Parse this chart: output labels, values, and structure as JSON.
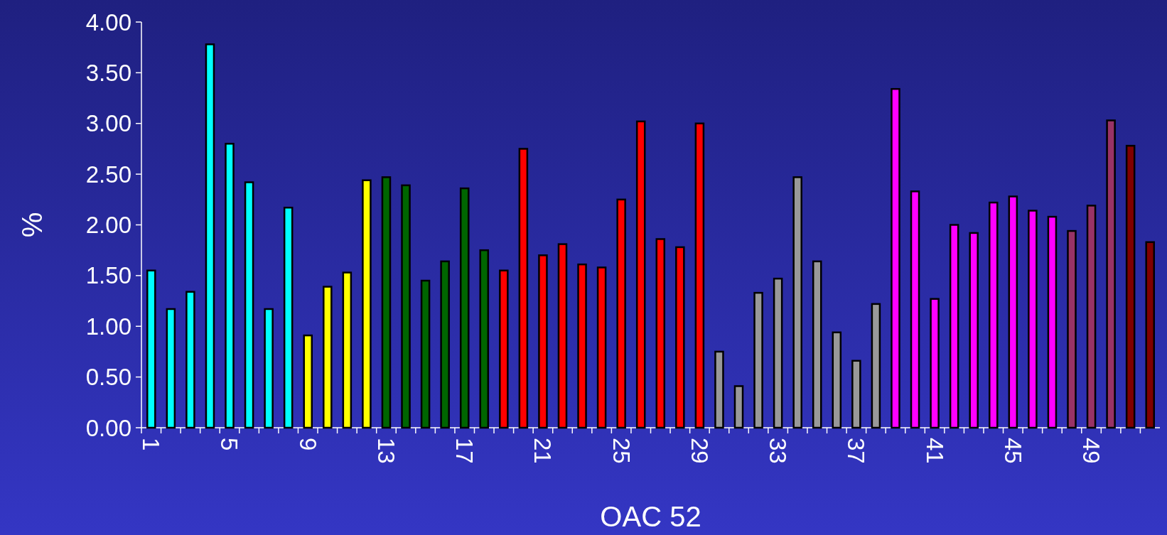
{
  "chart_data": {
    "type": "bar",
    "xlabel": "OAC 52",
    "ylabel": "%",
    "categories": [
      "1",
      null,
      null,
      null,
      "5",
      null,
      null,
      null,
      "9",
      null,
      null,
      null,
      "13",
      null,
      null,
      null,
      "17",
      null,
      null,
      null,
      "21",
      null,
      null,
      null,
      "25",
      null,
      null,
      null,
      "29",
      null,
      null,
      null,
      "33",
      null,
      null,
      null,
      "37",
      null,
      null,
      null,
      "41",
      null,
      null,
      null,
      "45",
      null,
      null,
      null,
      "49",
      null,
      null,
      null
    ],
    "values": [
      1.55,
      1.17,
      1.34,
      3.78,
      2.8,
      2.42,
      1.17,
      2.17,
      0.91,
      1.39,
      1.53,
      2.44,
      2.47,
      2.39,
      1.45,
      1.64,
      2.36,
      1.75,
      1.55,
      2.75,
      1.7,
      1.81,
      1.61,
      1.58,
      2.25,
      3.02,
      1.86,
      1.78,
      3.0,
      0.75,
      0.41,
      1.33,
      1.47,
      2.47,
      1.64,
      0.94,
      0.66,
      1.22,
      3.34,
      2.33,
      1.27,
      2.0,
      1.92,
      2.22,
      2.28,
      2.14,
      2.08,
      1.94,
      2.19,
      3.03,
      2.78,
      1.83
    ],
    "colors": [
      "#00ffff",
      "#00ffff",
      "#00ffff",
      "#00ffff",
      "#00ffff",
      "#00ffff",
      "#00ffff",
      "#00ffff",
      "#ffff00",
      "#ffff00",
      "#ffff00",
      "#ffff00",
      "#006600",
      "#006600",
      "#006600",
      "#006600",
      "#006600",
      "#006600",
      "#ff0000",
      "#ff0000",
      "#ff0000",
      "#ff0000",
      "#ff0000",
      "#ff0000",
      "#ff0000",
      "#ff0000",
      "#ff0000",
      "#ff0000",
      "#ff0000",
      "#999999",
      "#999999",
      "#999999",
      "#999999",
      "#999999",
      "#999999",
      "#999999",
      "#999999",
      "#999999",
      "#ff00ff",
      "#ff00ff",
      "#ff00ff",
      "#ff00ff",
      "#ff00ff",
      "#ff00ff",
      "#ff00ff",
      "#ff00ff",
      "#ff00ff",
      "#993366",
      "#993366",
      "#993366",
      "#800000",
      "#800000"
    ],
    "ylim": [
      0,
      4
    ],
    "yticks": [
      {
        "value": 0,
        "label": "0.00"
      },
      {
        "value": 0.5,
        "label": "0.50"
      },
      {
        "value": 1,
        "label": "1.00"
      },
      {
        "value": 1.5,
        "label": "1.50"
      },
      {
        "value": 2,
        "label": "2.00"
      },
      {
        "value": 2.5,
        "label": "2.50"
      },
      {
        "value": 3,
        "label": "3.00"
      },
      {
        "value": 3.5,
        "label": "3.50"
      },
      {
        "value": 4,
        "label": "4.00"
      }
    ]
  }
}
